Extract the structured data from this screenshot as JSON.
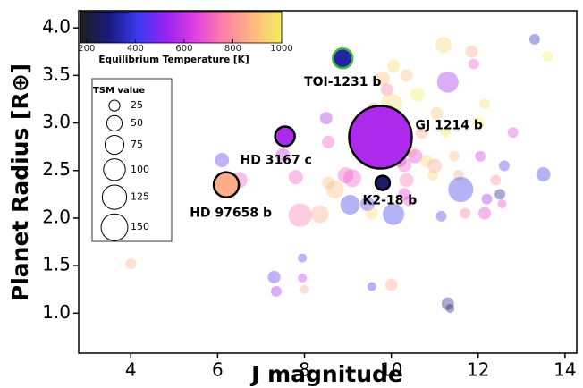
{
  "chart_data": {
    "type": "bubble",
    "xlabel": "J magnitude",
    "ylabel": "Planet Radius [R⊕]",
    "xlim": [
      2.8,
      14.27
    ],
    "ylim": [
      0.58,
      4.18
    ],
    "xticks": [
      4,
      6,
      8,
      10,
      12,
      14
    ],
    "yticks": [
      {
        "value": 1,
        "label": "1.0"
      },
      1.5,
      {
        "value": 2,
        "label": "2.0"
      },
      2.5,
      {
        "value": 3,
        "label": "3.0"
      },
      3.5,
      {
        "value": 4,
        "label": "4.0"
      }
    ],
    "colorbar": {
      "label": "Equilibrium Temperature [K]",
      "clim": [
        175,
        1000
      ],
      "ticks": [
        200,
        400,
        600,
        800,
        1000
      ],
      "colormap": [
        "#1e1e1e",
        "#1a1a80",
        "#3a3af0",
        "#9a22f0",
        "#e040e0",
        "#ff80a8",
        "#ffb880",
        "#f2f060"
      ]
    },
    "size_legend": {
      "title": "TSM value",
      "sizes": [
        25,
        50,
        75,
        100,
        125,
        150
      ]
    },
    "background": {
      "x": [
        4.0,
        6.1,
        6.5,
        7.3,
        7.35,
        7.5,
        7.8,
        7.9,
        7.95,
        7.95,
        8.0,
        8.35,
        8.55,
        8.55,
        8.5,
        8.7,
        8.95,
        9.05,
        9.1,
        9.45,
        9.55,
        9.55,
        9.6,
        9.8,
        9.9,
        10.05,
        10.0,
        10.05,
        10.0,
        10.1,
        10.15,
        10.2,
        10.3,
        10.35,
        10.3,
        10.35,
        10.4,
        10.45,
        10.55,
        10.6,
        10.7,
        10.8,
        10.95,
        11.0,
        11.05,
        11.15,
        11.2,
        11.25,
        11.3,
        11.3,
        11.35,
        11.45,
        11.55,
        11.6,
        11.7,
        11.85,
        11.9,
        12.0,
        12.05,
        12.2,
        12.15,
        12.15,
        12.4,
        12.5,
        12.55,
        12.6,
        12.8,
        13.3,
        13.5,
        13.6
      ],
      "y": [
        1.52,
        2.61,
        2.4,
        1.38,
        1.23,
        2.66,
        2.43,
        2.03,
        1.58,
        1.37,
        1.25,
        2.04,
        2.37,
        2.8,
        3.05,
        2.3,
        2.45,
        2.14,
        2.42,
        2.15,
        1.28,
        2.05,
        3.15,
        3.47,
        3.35,
        3.6,
        3.2,
        2.04,
        1.3,
        2.95,
        2.75,
        2.6,
        2.56,
        2.4,
        2.25,
        3.5,
        2.18,
        2.7,
        2.65,
        3.3,
        2.9,
        2.6,
        2.45,
        2.55,
        3.1,
        2.02,
        3.82,
        2.9,
        3.43,
        1.1,
        1.05,
        2.65,
        2.45,
        2.3,
        2.05,
        3.75,
        3.62,
        3.0,
        2.65,
        2.2,
        2.05,
        3.2,
        2.4,
        2.25,
        2.15,
        2.55,
        2.9,
        3.88,
        2.46,
        3.7
      ],
      "size": [
        24,
        43,
        54,
        33,
        24,
        43,
        43,
        114,
        17,
        17,
        17,
        67,
        33,
        33,
        33,
        67,
        54,
        81,
        67,
        43,
        17,
        33,
        33,
        43,
        33,
        33,
        97,
        97,
        33,
        67,
        43,
        33,
        43,
        43,
        33,
        33,
        24,
        33,
        43,
        43,
        33,
        33,
        24,
        43,
        33,
        24,
        54,
        24,
        97,
        33,
        17,
        24,
        24,
        132,
        24,
        33,
        24,
        33,
        24,
        24,
        33,
        24,
        24,
        24,
        17,
        24,
        24,
        24,
        43,
        24
      ],
      "temperature": [
        850,
        450,
        700,
        450,
        550,
        600,
        700,
        750,
        450,
        600,
        850,
        850,
        900,
        700,
        550,
        900,
        700,
        400,
        700,
        450,
        400,
        950,
        850,
        900,
        750,
        950,
        950,
        400,
        850,
        800,
        850,
        600,
        700,
        750,
        650,
        900,
        700,
        950,
        650,
        1000,
        850,
        950,
        950,
        850,
        900,
        450,
        950,
        1000,
        550,
        300,
        250,
        900,
        850,
        400,
        750,
        850,
        700,
        1000,
        600,
        550,
        650,
        950,
        800,
        300,
        650,
        450,
        650,
        350,
        400,
        1000
      ]
    },
    "planets": [
      {
        "label": "TOI-1231 b",
        "x": 8.88,
        "y": 3.68,
        "size": 81,
        "temperature": 330,
        "edgecolor": "#3cb83c"
      },
      {
        "label": "GJ 1214 b",
        "x": 9.75,
        "y": 2.85,
        "size": 823,
        "temperature": 560,
        "edgecolor": "#000000"
      },
      {
        "label": "HD 3167 c",
        "x": 7.55,
        "y": 2.86,
        "size": 81,
        "temperature": 560,
        "edgecolor": "#000000"
      },
      {
        "label": "HD 97658 b",
        "x": 6.2,
        "y": 2.35,
        "size": 132,
        "temperature": 860,
        "edgecolor": "#000000"
      },
      {
        "label": "K2-18 b",
        "x": 9.8,
        "y": 2.37,
        "size": 43,
        "temperature": 270,
        "edgecolor": "#000000"
      }
    ]
  }
}
